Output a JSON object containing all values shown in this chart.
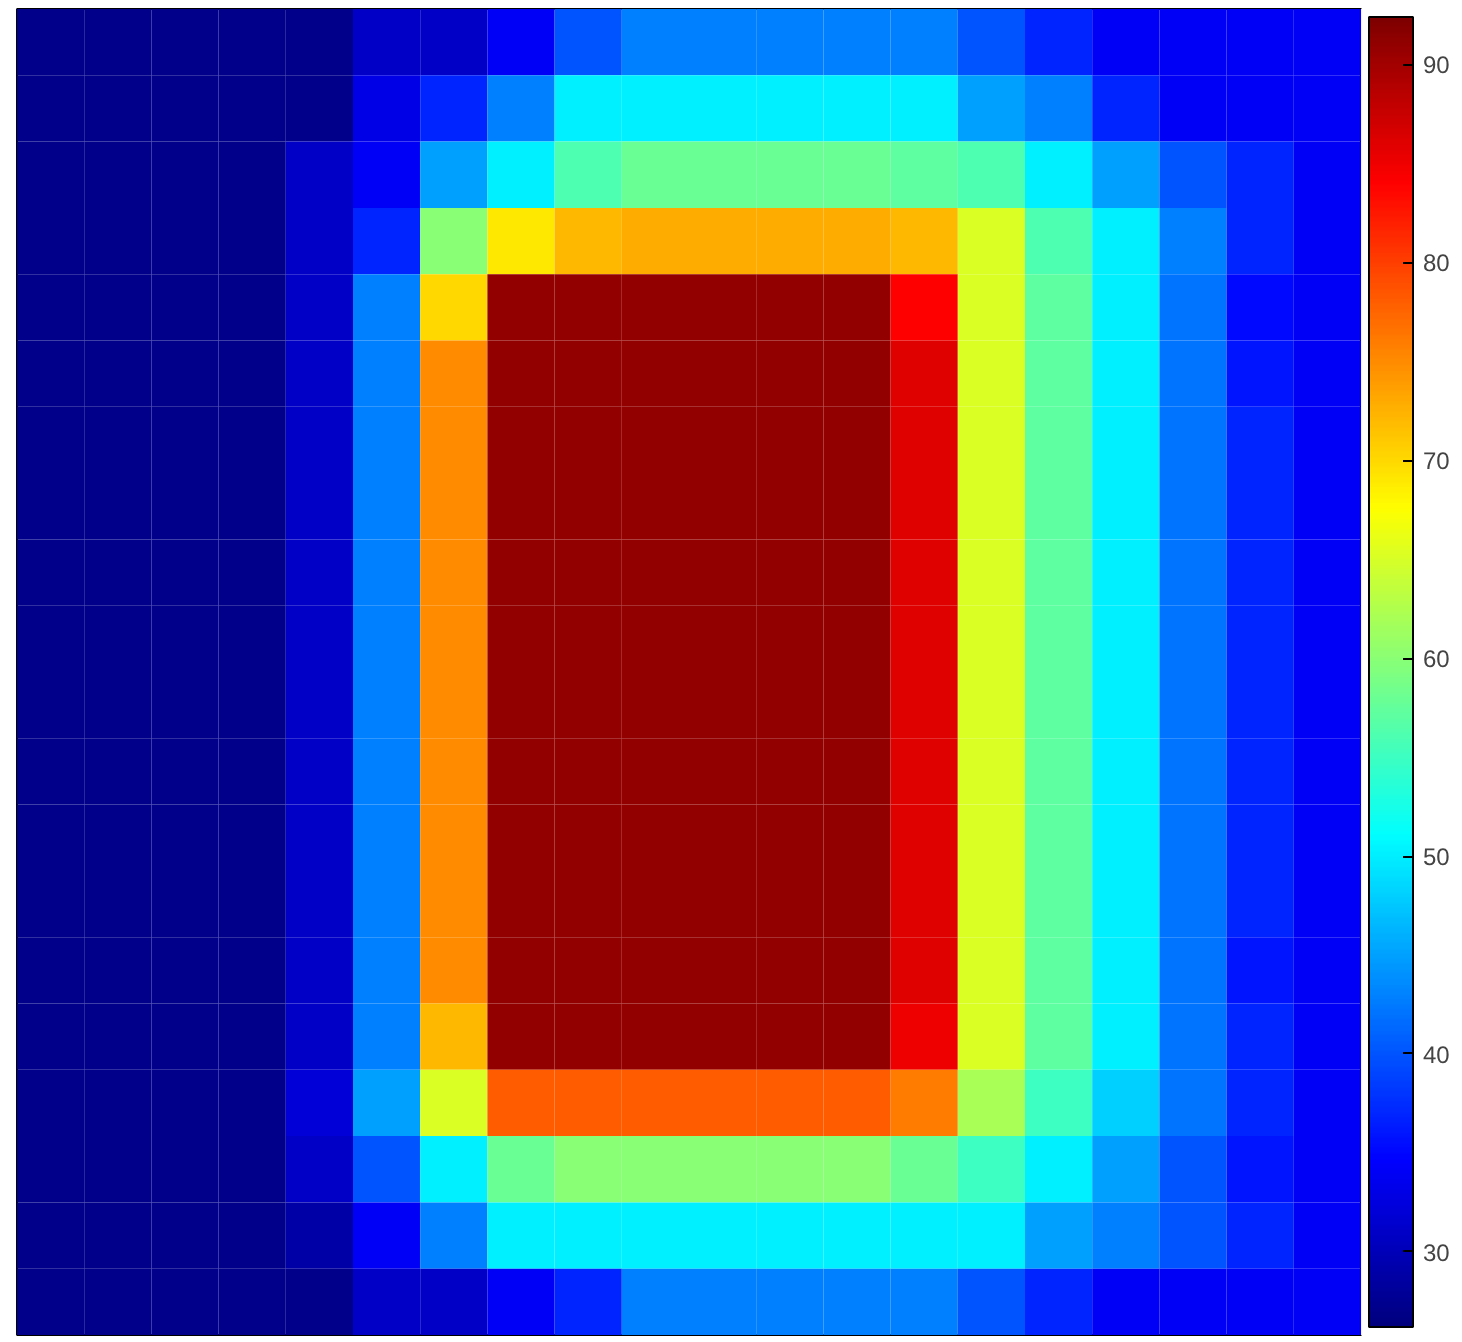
{
  "chart_data": {
    "type": "heatmap",
    "categories": [
      null,
      null,
      null,
      null,
      null,
      null,
      null,
      null,
      null,
      null,
      null,
      null,
      null,
      null,
      null,
      null,
      null,
      null,
      null,
      null
    ],
    "y_categories": [
      null,
      null,
      null,
      null,
      null,
      null,
      null,
      null,
      null,
      null,
      null,
      null,
      null,
      null,
      null,
      null,
      null,
      null,
      null,
      null
    ],
    "cells": [
      [
        27,
        27,
        27,
        27,
        27,
        31,
        31,
        34,
        40,
        43,
        43,
        43,
        43,
        43,
        40,
        37,
        34,
        34,
        34,
        34
      ],
      [
        27,
        27,
        27,
        27,
        27,
        33,
        37,
        43,
        50,
        50,
        50,
        50,
        50,
        50,
        45,
        43,
        37,
        34,
        34,
        34
      ],
      [
        27,
        27,
        27,
        27,
        31,
        34,
        45,
        50,
        56,
        58,
        58,
        58,
        58,
        57,
        56,
        50,
        45,
        40,
        37,
        34
      ],
      [
        27,
        27,
        27,
        27,
        31,
        37,
        60,
        69,
        72,
        73,
        73,
        73,
        73,
        72,
        65,
        56,
        50,
        43,
        37,
        34
      ],
      [
        27,
        27,
        27,
        27,
        31,
        43,
        70,
        91,
        91,
        91,
        91,
        91,
        91,
        84,
        65,
        57,
        50,
        42,
        35,
        34
      ],
      [
        27,
        27,
        27,
        27,
        31,
        43,
        75,
        91,
        91,
        91,
        91,
        91,
        91,
        86,
        65,
        57,
        50,
        42,
        36,
        34
      ],
      [
        27,
        27,
        27,
        27,
        31,
        43,
        75,
        91,
        91,
        91,
        91,
        91,
        91,
        86,
        65,
        57,
        50,
        42,
        37,
        34
      ],
      [
        27,
        27,
        27,
        27,
        31,
        43,
        75,
        91,
        91,
        91,
        91,
        91,
        91,
        86,
        65,
        57,
        50,
        42,
        37,
        34
      ],
      [
        27,
        27,
        27,
        27,
        31,
        43,
        75,
        91,
        91,
        91,
        91,
        91,
        91,
        86,
        65,
        57,
        50,
        42,
        37,
        34
      ],
      [
        27,
        27,
        27,
        27,
        31,
        43,
        75,
        91,
        91,
        91,
        91,
        91,
        91,
        86,
        65,
        57,
        50,
        42,
        37,
        34
      ],
      [
        27,
        27,
        27,
        27,
        31,
        43,
        75,
        91,
        91,
        91,
        91,
        91,
        91,
        86,
        65,
        57,
        50,
        42,
        37,
        34
      ],
      [
        27,
        27,
        27,
        27,
        31,
        43,
        75,
        91,
        91,
        91,
        91,
        91,
        91,
        86,
        65,
        57,
        50,
        42,
        37,
        34
      ],
      [
        27,
        27,
        27,
        27,
        31,
        43,
        75,
        91,
        91,
        91,
        91,
        91,
        91,
        86,
        65,
        57,
        50,
        42,
        37,
        34
      ],
      [
        27,
        27,
        27,
        27,
        31,
        43,
        75,
        91,
        91,
        91,
        91,
        91,
        91,
        86,
        65,
        57,
        50,
        42,
        37,
        34
      ],
      [
        27,
        27,
        27,
        27,
        31,
        43,
        75,
        91,
        91,
        91,
        91,
        91,
        91,
        86,
        65,
        57,
        50,
        42,
        36,
        34
      ],
      [
        27,
        27,
        27,
        27,
        31,
        43,
        72,
        91,
        91,
        91,
        91,
        91,
        91,
        85,
        65,
        57,
        50,
        42,
        37,
        34
      ],
      [
        27,
        27,
        27,
        27,
        32,
        45,
        65,
        78,
        78,
        78,
        78,
        78,
        78,
        76,
        62,
        55,
        48,
        42,
        37,
        34
      ],
      [
        27,
        27,
        27,
        27,
        31,
        40,
        50,
        58,
        60,
        60,
        60,
        60,
        60,
        58,
        55,
        50,
        45,
        40,
        36,
        34
      ],
      [
        27,
        27,
        27,
        27,
        29,
        34,
        43,
        50,
        50,
        50,
        50,
        50,
        50,
        50,
        50,
        45,
        43,
        40,
        37,
        34
      ],
      [
        27,
        27,
        27,
        27,
        27,
        31,
        31,
        34,
        37,
        43,
        43,
        43,
        43,
        43,
        40,
        37,
        34,
        34,
        34,
        34
      ]
    ],
    "clim": [
      26.2,
      92.4
    ],
    "cticks": [
      30,
      40,
      50,
      60,
      70,
      80,
      90
    ]
  }
}
